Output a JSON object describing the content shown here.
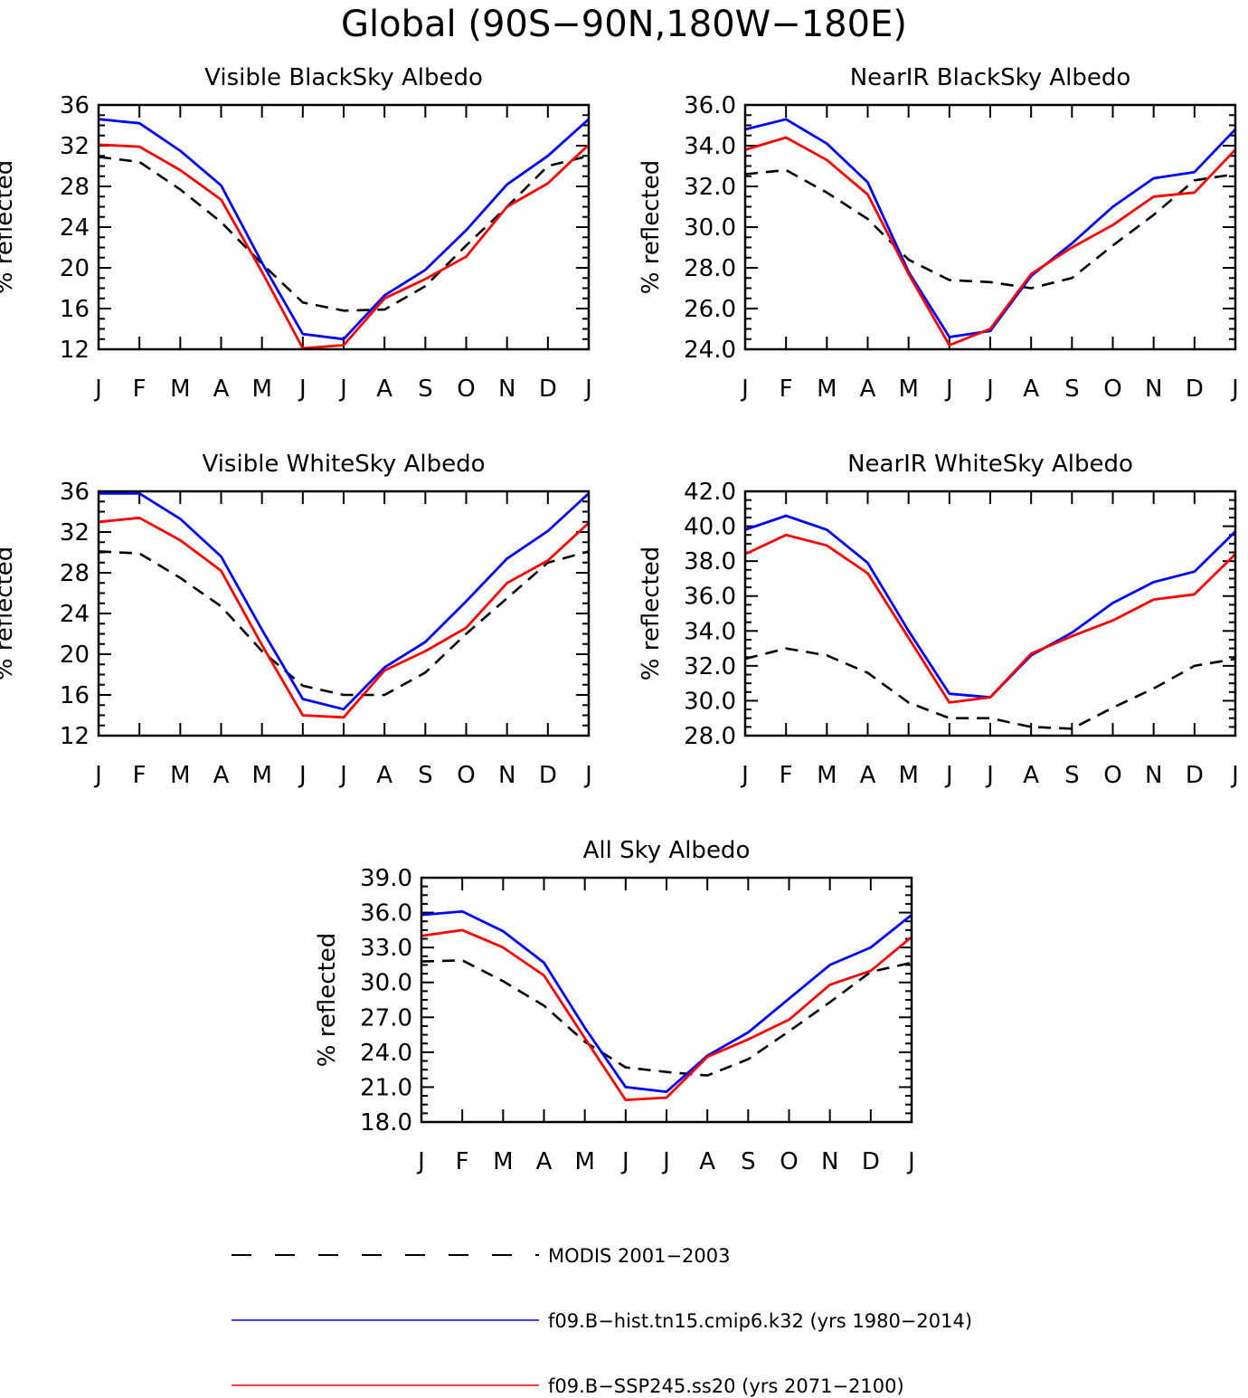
{
  "figure": {
    "title": "Global (90S−90N,180W−180E)"
  },
  "colors": {
    "modis": "#000000",
    "hist": "#0000ff",
    "ssp": "#ff0000",
    "axes": "#000000",
    "background": "#ffffff"
  },
  "legend": [
    {
      "label": "MODIS 2001−2003",
      "color": "#000000",
      "dash": true
    },
    {
      "label": "f09.B−hist.tn15.cmip6.k32 (yrs 1980−2014)",
      "color": "#0000ff",
      "dash": false
    },
    {
      "label": "f09.B−SSP245.ss20 (yrs 2071−2100)",
      "color": "#ff0000",
      "dash": false
    }
  ],
  "chart_data": [
    {
      "id": "vis-black",
      "type": "line",
      "title": "Visible BlackSky Albedo",
      "ylabel": "% reflected",
      "categories": [
        "J",
        "F",
        "M",
        "A",
        "M",
        "J",
        "J",
        "A",
        "S",
        "O",
        "N",
        "D",
        "J"
      ],
      "ylim": [
        12,
        36
      ],
      "yticks": [
        "12",
        "16",
        "20",
        "24",
        "28",
        "32",
        "36"
      ],
      "grid": false,
      "series": [
        {
          "name": "MODIS 2001−2003",
          "color": "#000000",
          "dash": true,
          "values": [
            30.9,
            30.4,
            27.7,
            24.5,
            20.4,
            16.6,
            15.8,
            15.9,
            18.2,
            22.2,
            26.0,
            30.0,
            31.0
          ]
        },
        {
          "name": "f09.B−hist.tn15.cmip6.k32 (yrs 1980−2014)",
          "color": "#0000ff",
          "dash": false,
          "values": [
            34.6,
            34.2,
            31.5,
            28.1,
            20.5,
            13.5,
            13.0,
            17.3,
            19.8,
            23.7,
            28.2,
            31.0,
            34.6
          ]
        },
        {
          "name": "f09.B−SSP245.ss20 (yrs 2071−2100)",
          "color": "#ff0000",
          "dash": false,
          "values": [
            32.1,
            31.9,
            29.6,
            26.7,
            19.6,
            12.1,
            12.4,
            17.0,
            18.9,
            21.1,
            26.0,
            28.3,
            32.1
          ]
        }
      ]
    },
    {
      "id": "nir-black",
      "type": "line",
      "title": "NearIR BlackSky Albedo",
      "ylabel": "% reflected",
      "categories": [
        "J",
        "F",
        "M",
        "A",
        "M",
        "J",
        "J",
        "A",
        "S",
        "O",
        "N",
        "D",
        "J"
      ],
      "ylim": [
        24,
        36
      ],
      "yticks": [
        "24.0",
        "26.0",
        "28.0",
        "30.0",
        "32.0",
        "34.0",
        "36.0"
      ],
      "grid": false,
      "series": [
        {
          "name": "MODIS 2001−2003",
          "color": "#000000",
          "dash": true,
          "values": [
            32.6,
            32.8,
            31.7,
            30.4,
            28.4,
            27.4,
            27.3,
            27.0,
            27.5,
            29.1,
            30.6,
            32.3,
            32.6
          ]
        },
        {
          "name": "f09.B−hist.tn15.cmip6.k32 (yrs 1980−2014)",
          "color": "#0000ff",
          "dash": false,
          "values": [
            34.8,
            35.3,
            34.1,
            32.2,
            27.8,
            24.6,
            24.9,
            27.6,
            29.2,
            31.0,
            32.4,
            32.7,
            34.8
          ]
        },
        {
          "name": "f09.B−SSP245.ss20 (yrs 2071−2100)",
          "color": "#ff0000",
          "dash": false,
          "values": [
            33.8,
            34.4,
            33.3,
            31.6,
            27.7,
            24.2,
            25.0,
            27.7,
            29.0,
            30.1,
            31.5,
            31.7,
            33.8
          ]
        }
      ]
    },
    {
      "id": "vis-white",
      "type": "line",
      "title": "Visible WhiteSky Albedo",
      "ylabel": "% reflected",
      "categories": [
        "J",
        "F",
        "M",
        "A",
        "M",
        "J",
        "J",
        "A",
        "S",
        "O",
        "N",
        "D",
        "J"
      ],
      "ylim": [
        12,
        36
      ],
      "yticks": [
        "12",
        "16",
        "20",
        "24",
        "28",
        "32",
        "36"
      ],
      "grid": false,
      "series": [
        {
          "name": "MODIS 2001−2003",
          "color": "#000000",
          "dash": true,
          "values": [
            30.1,
            29.9,
            27.5,
            24.7,
            20.3,
            16.9,
            16.0,
            16.0,
            18.2,
            22.0,
            25.5,
            29.0,
            30.1
          ]
        },
        {
          "name": "f09.B−hist.tn15.cmip6.k32 (yrs 1980−2014)",
          "color": "#0000ff",
          "dash": false,
          "values": [
            35.8,
            35.8,
            33.3,
            29.6,
            22.4,
            15.6,
            14.6,
            18.7,
            21.2,
            25.2,
            29.4,
            32.1,
            35.8
          ]
        },
        {
          "name": "f09.B−SSP245.ss20 (yrs 2071−2100)",
          "color": "#ff0000",
          "dash": false,
          "values": [
            33.0,
            33.4,
            31.2,
            28.2,
            20.9,
            14.0,
            13.8,
            18.4,
            20.3,
            22.6,
            27.0,
            29.2,
            32.9
          ]
        }
      ]
    },
    {
      "id": "nir-white",
      "type": "line",
      "title": "NearIR WhiteSky Albedo",
      "ylabel": "% reflected",
      "categories": [
        "J",
        "F",
        "M",
        "A",
        "M",
        "J",
        "J",
        "A",
        "S",
        "O",
        "N",
        "D",
        "J"
      ],
      "ylim": [
        28,
        42
      ],
      "yticks": [
        "28.0",
        "30.0",
        "32.0",
        "34.0",
        "36.0",
        "38.0",
        "40.0",
        "42.0"
      ],
      "grid": false,
      "series": [
        {
          "name": "MODIS 2001−2003",
          "color": "#000000",
          "dash": true,
          "values": [
            32.4,
            33.0,
            32.6,
            31.6,
            29.9,
            29.0,
            29.0,
            28.5,
            28.4,
            29.6,
            30.7,
            32.0,
            32.4
          ]
        },
        {
          "name": "f09.B−hist.tn15.cmip6.k32 (yrs 1980−2014)",
          "color": "#0000ff",
          "dash": false,
          "values": [
            39.8,
            40.6,
            39.8,
            37.9,
            34.0,
            30.4,
            30.2,
            32.6,
            33.9,
            35.6,
            36.8,
            37.4,
            39.7
          ]
        },
        {
          "name": "f09.B−SSP245.ss20 (yrs 2071−2100)",
          "color": "#ff0000",
          "dash": false,
          "values": [
            38.4,
            39.5,
            38.9,
            37.3,
            33.6,
            29.9,
            30.2,
            32.7,
            33.7,
            34.6,
            35.8,
            36.1,
            38.4
          ]
        }
      ]
    },
    {
      "id": "all-sky",
      "type": "line",
      "title": "All Sky Albedo",
      "ylabel": "% reflected",
      "categories": [
        "J",
        "F",
        "M",
        "A",
        "M",
        "J",
        "J",
        "A",
        "S",
        "O",
        "N",
        "D",
        "J"
      ],
      "ylim": [
        18,
        39
      ],
      "yticks": [
        "18.0",
        "21.0",
        "24.0",
        "27.0",
        "30.0",
        "33.0",
        "36.0",
        "39.0"
      ],
      "grid": false,
      "series": [
        {
          "name": "MODIS 2001−2003",
          "color": "#000000",
          "dash": true,
          "values": [
            31.8,
            31.9,
            30.1,
            28.0,
            24.9,
            22.7,
            22.3,
            22.0,
            23.4,
            25.8,
            28.3,
            30.9,
            31.7
          ]
        },
        {
          "name": "f09.B−hist.tn15.cmip6.k32 (yrs 1980−2014)",
          "color": "#0000ff",
          "dash": false,
          "values": [
            35.8,
            36.1,
            34.4,
            31.7,
            26.1,
            21.0,
            20.6,
            23.7,
            25.7,
            28.6,
            31.5,
            33.0,
            35.8
          ]
        },
        {
          "name": "f09.B−SSP245.ss20 (yrs 2071−2100)",
          "color": "#ff0000",
          "dash": false,
          "values": [
            34.0,
            34.5,
            33.0,
            30.6,
            25.2,
            19.9,
            20.1,
            23.6,
            25.1,
            26.8,
            29.8,
            31.0,
            33.9
          ]
        }
      ]
    }
  ]
}
